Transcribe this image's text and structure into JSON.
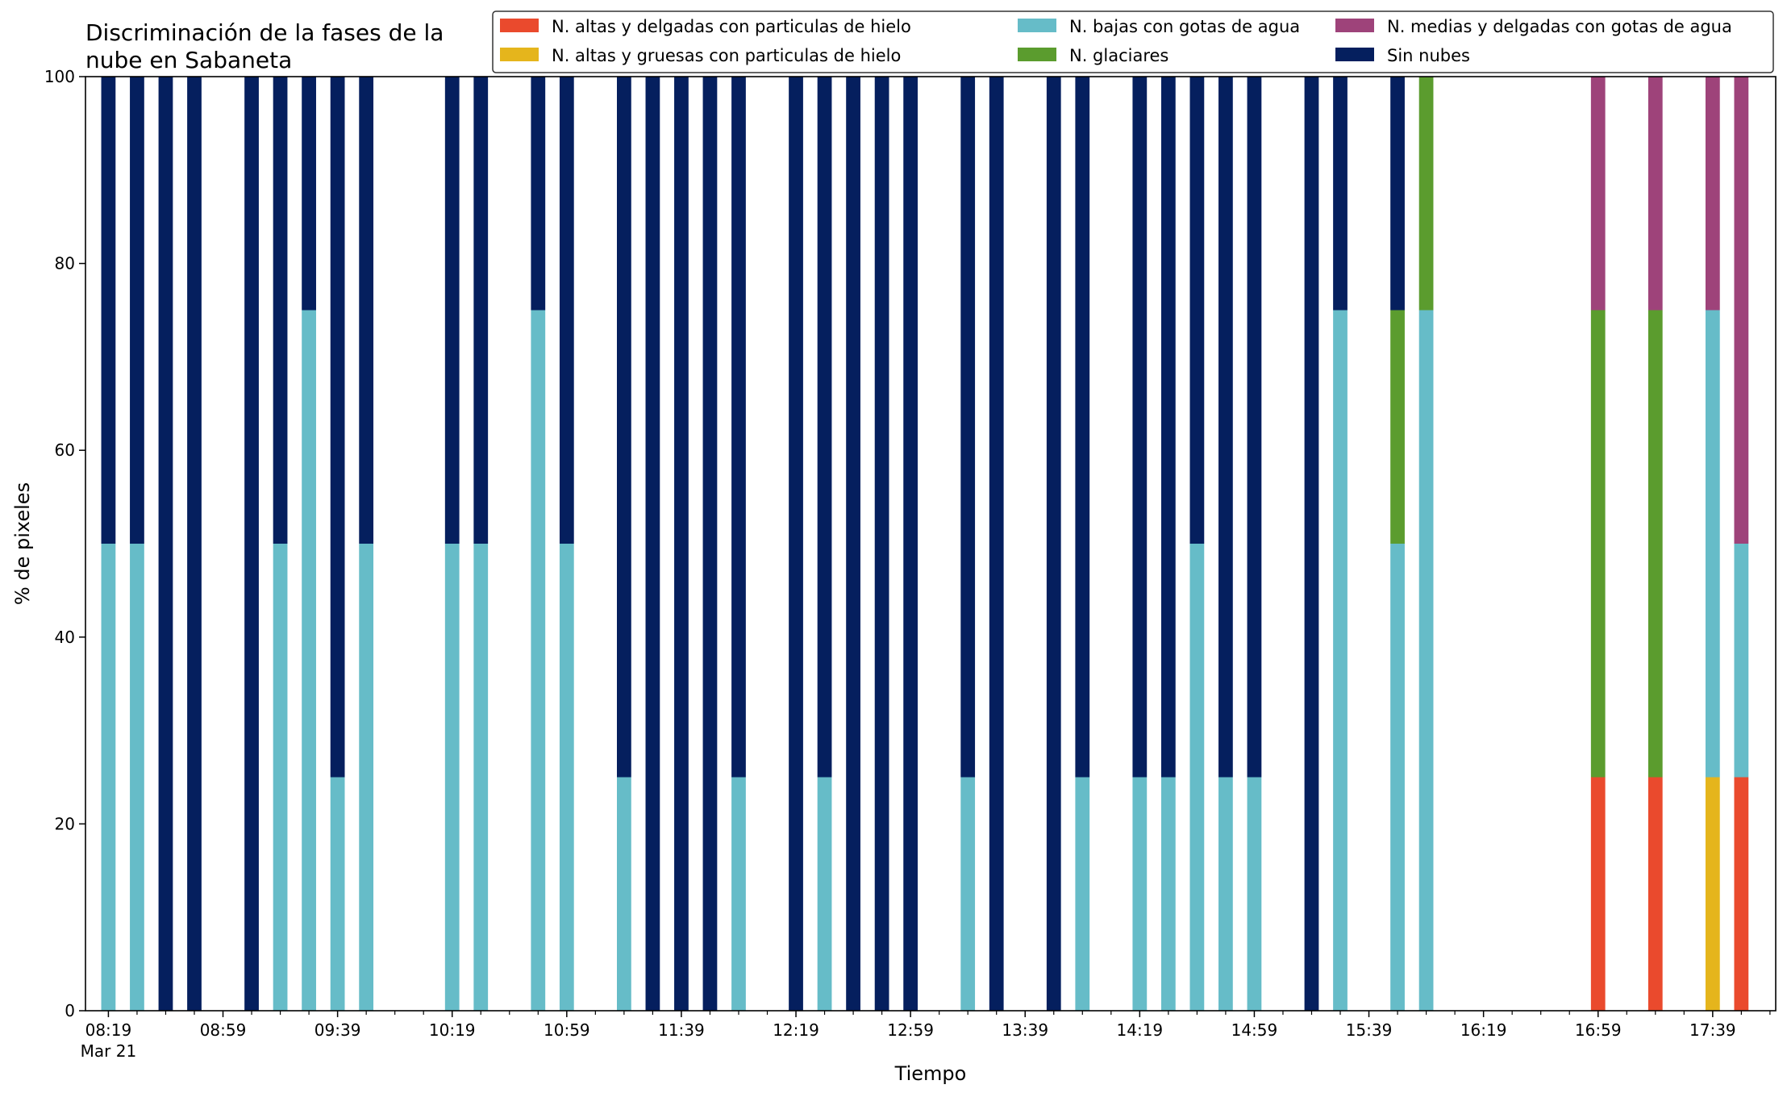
{
  "chart_data": {
    "type": "bar",
    "stacked": true,
    "title_lines": [
      "Discriminación de la fases de la",
      "nube en Sabaneta"
    ],
    "xlabel": "Tiempo",
    "ylabel": "% de pixeles",
    "ylim": [
      0,
      100
    ],
    "yticks": [
      0,
      20,
      40,
      60,
      80,
      100
    ],
    "x_range_minutes": [
      "08:11",
      "18:01"
    ],
    "xtick_labels": [
      "08:19",
      "08:59",
      "09:39",
      "10:19",
      "10:59",
      "11:39",
      "12:19",
      "12:59",
      "13:39",
      "14:19",
      "14:59",
      "15:39",
      "16:19",
      "16:59",
      "17:39"
    ],
    "xtick_date_label": "Mar 21",
    "minor_tick_interval_minutes": 10,
    "bar_width_minutes": 5,
    "grid": false,
    "legend_position": "top-right, above plot",
    "series": [
      {
        "key": "altas_delgadas",
        "name": "N. altas y delgadas con particulas de hielo",
        "color": "#ea4a2d"
      },
      {
        "key": "altas_gruesas",
        "name": "N. altas y gruesas con particulas de hielo",
        "color": "#e5b51c"
      },
      {
        "key": "bajas_agua",
        "name": "N. bajas con gotas de agua",
        "color": "#66bcc8"
      },
      {
        "key": "glaciares",
        "name": "N. glaciares",
        "color": "#5b9c2e"
      },
      {
        "key": "medias_agua",
        "name": "N. medias y delgadas con gotas de agua",
        "color": "#9e437a"
      },
      {
        "key": "sin_nubes",
        "name": "Sin nubes",
        "color": "#051f5e"
      }
    ],
    "bars": [
      {
        "x": "08:19",
        "values": [
          0,
          0,
          50,
          0,
          0,
          50
        ]
      },
      {
        "x": "08:29",
        "values": [
          0,
          0,
          50,
          0,
          0,
          50
        ]
      },
      {
        "x": "08:39",
        "values": [
          0,
          0,
          0,
          0,
          0,
          100
        ]
      },
      {
        "x": "08:49",
        "values": [
          0,
          0,
          0,
          0,
          0,
          100
        ]
      },
      {
        "x": "09:09",
        "values": [
          0,
          0,
          0,
          0,
          0,
          100
        ]
      },
      {
        "x": "09:19",
        "values": [
          0,
          0,
          50,
          0,
          0,
          50
        ]
      },
      {
        "x": "09:29",
        "values": [
          0,
          0,
          75,
          0,
          0,
          25
        ]
      },
      {
        "x": "09:39",
        "values": [
          0,
          0,
          25,
          0,
          0,
          75
        ]
      },
      {
        "x": "09:49",
        "values": [
          0,
          0,
          50,
          0,
          0,
          50
        ]
      },
      {
        "x": "10:19",
        "values": [
          0,
          0,
          50,
          0,
          0,
          50
        ]
      },
      {
        "x": "10:29",
        "values": [
          0,
          0,
          50,
          0,
          0,
          50
        ]
      },
      {
        "x": "10:49",
        "values": [
          0,
          0,
          75,
          0,
          0,
          25
        ]
      },
      {
        "x": "10:59",
        "values": [
          0,
          0,
          50,
          0,
          0,
          50
        ]
      },
      {
        "x": "11:19",
        "values": [
          0,
          0,
          25,
          0,
          0,
          75
        ]
      },
      {
        "x": "11:29",
        "values": [
          0,
          0,
          0,
          0,
          0,
          100
        ]
      },
      {
        "x": "11:39",
        "values": [
          0,
          0,
          0,
          0,
          0,
          100
        ]
      },
      {
        "x": "11:49",
        "values": [
          0,
          0,
          0,
          0,
          0,
          100
        ]
      },
      {
        "x": "11:59",
        "values": [
          0,
          0,
          25,
          0,
          0,
          75
        ]
      },
      {
        "x": "12:19",
        "values": [
          0,
          0,
          0,
          0,
          0,
          100
        ]
      },
      {
        "x": "12:29",
        "values": [
          0,
          0,
          25,
          0,
          0,
          75
        ]
      },
      {
        "x": "12:39",
        "values": [
          0,
          0,
          0,
          0,
          0,
          100
        ]
      },
      {
        "x": "12:49",
        "values": [
          0,
          0,
          0,
          0,
          0,
          100
        ]
      },
      {
        "x": "12:59",
        "values": [
          0,
          0,
          0,
          0,
          0,
          100
        ]
      },
      {
        "x": "13:19",
        "values": [
          0,
          0,
          25,
          0,
          0,
          75
        ]
      },
      {
        "x": "13:29",
        "values": [
          0,
          0,
          0,
          0,
          0,
          100
        ]
      },
      {
        "x": "13:49",
        "values": [
          0,
          0,
          0,
          0,
          0,
          100
        ]
      },
      {
        "x": "13:59",
        "values": [
          0,
          0,
          25,
          0,
          0,
          75
        ]
      },
      {
        "x": "14:19",
        "values": [
          0,
          0,
          25,
          0,
          0,
          75
        ]
      },
      {
        "x": "14:29",
        "values": [
          0,
          0,
          25,
          0,
          0,
          75
        ]
      },
      {
        "x": "14:39",
        "values": [
          0,
          0,
          50,
          0,
          0,
          50
        ]
      },
      {
        "x": "14:49",
        "values": [
          0,
          0,
          25,
          0,
          0,
          75
        ]
      },
      {
        "x": "14:59",
        "values": [
          0,
          0,
          25,
          0,
          0,
          75
        ]
      },
      {
        "x": "15:19",
        "values": [
          0,
          0,
          0,
          0,
          0,
          100
        ]
      },
      {
        "x": "15:29",
        "values": [
          0,
          0,
          75,
          0,
          0,
          25
        ]
      },
      {
        "x": "15:49",
        "values": [
          0,
          0,
          50,
          25,
          0,
          25
        ]
      },
      {
        "x": "15:59",
        "values": [
          0,
          0,
          75,
          25,
          0,
          0
        ]
      },
      {
        "x": "16:59",
        "values": [
          25,
          0,
          0,
          50,
          25,
          0
        ]
      },
      {
        "x": "17:19",
        "values": [
          25,
          0,
          0,
          50,
          25,
          0
        ]
      },
      {
        "x": "17:39",
        "values": [
          0,
          25,
          50,
          0,
          25,
          0
        ]
      },
      {
        "x": "17:49",
        "values": [
          25,
          0,
          25,
          0,
          50,
          0
        ]
      }
    ]
  }
}
